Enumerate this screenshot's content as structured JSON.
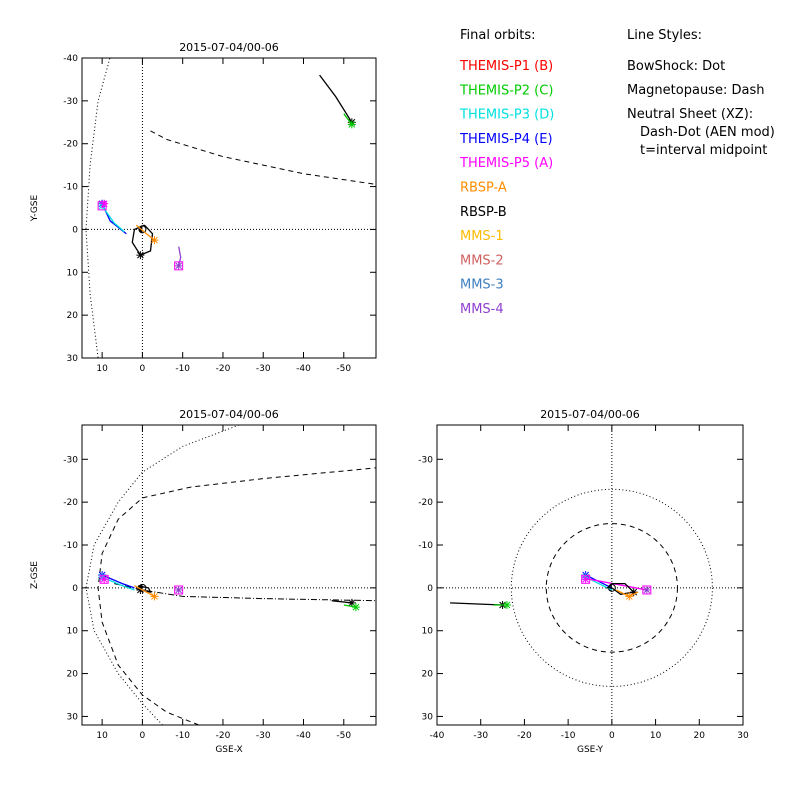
{
  "legend": {
    "orbits_title": "Final orbits:",
    "entries": [
      {
        "label": "THEMIS-P1 (B)",
        "color": "#ff0000"
      },
      {
        "label": "THEMIS-P2 (C)",
        "color": "#00cc00"
      },
      {
        "label": "THEMIS-P3 (D)",
        "color": "#00e0e0"
      },
      {
        "label": "THEMIS-P4 (E)",
        "color": "#0000ff"
      },
      {
        "label": "THEMIS-P5 (A)",
        "color": "#ff00ff"
      },
      {
        "label": "RBSP-A",
        "color": "#ff8c00"
      },
      {
        "label": "RBSP-B",
        "color": "#000000"
      },
      {
        "label": "MMS-1",
        "color": "#ffbb00"
      },
      {
        "label": "MMS-2",
        "color": "#d06060"
      },
      {
        "label": "MMS-3",
        "color": "#4080c0"
      },
      {
        "label": "MMS-4",
        "color": "#9040d0"
      }
    ],
    "styles_title": "Line Styles:",
    "styles": [
      "BowShock: Dot",
      "Magnetopause: Dash",
      "Neutral Sheet (XZ):",
      "Dash-Dot (AEN mod)",
      "t=interval midpoint"
    ]
  },
  "chart_data": [
    {
      "type": "line",
      "title": "2015-07-04/00-06",
      "xlabel": "",
      "ylabel": "Y-GSE",
      "xlim": [
        15,
        -58
      ],
      "ylim": [
        -40,
        30
      ],
      "xticks": [
        10,
        0,
        -10,
        -20,
        -30,
        -40,
        -50
      ],
      "yticks": [
        -40,
        -30,
        -20,
        -10,
        0,
        10,
        20,
        30
      ],
      "bow_shock": [
        [
          6,
          -47
        ],
        [
          11,
          -30
        ],
        [
          13,
          -15
        ],
        [
          14,
          0
        ],
        [
          13,
          15
        ],
        [
          11,
          30
        ],
        [
          6,
          47
        ]
      ],
      "magnetopause": [
        [
          -2,
          -23
        ],
        [
          -6,
          -21
        ],
        [
          -20,
          -17
        ],
        [
          -40,
          -13
        ],
        [
          -58,
          -10.5
        ]
      ],
      "series": [
        {
          "color": "#000000",
          "points": [
            [
              -44,
              -36
            ],
            [
              -48,
              -31
            ],
            [
              -52,
              -25
            ]
          ],
          "ends": [
            [
              -52,
              -25
            ]
          ]
        },
        {
          "color": "#00cc00",
          "points": [
            [
              -50,
              -27
            ],
            [
              -52,
              -24.5
            ]
          ],
          "ends": [
            [
              -52,
              -24.5
            ]
          ]
        },
        {
          "color": "#0000ff",
          "points": [
            [
              10,
              -6
            ],
            [
              8,
              -2
            ],
            [
              4,
              1
            ]
          ],
          "ends": [
            [
              10,
              -6
            ]
          ]
        },
        {
          "color": "#00e0e0",
          "points": [
            [
              10,
              -5.5
            ],
            [
              7,
              -1.5
            ],
            [
              4.5,
              0.5
            ]
          ],
          "ends": [
            [
              10,
              -5.5
            ]
          ]
        },
        {
          "color": "#ff00ff",
          "points": [
            [
              9.5,
              -6
            ],
            [
              10,
              -5
            ]
          ],
          "ends": [
            [
              9.5,
              -6
            ]
          ]
        },
        {
          "color": "#000000",
          "points": [
            [
              -0.5,
              -1
            ],
            [
              2,
              0
            ],
            [
              2.5,
              3
            ],
            [
              0.5,
              6
            ],
            [
              -2,
              5
            ],
            [
              -2.5,
              1
            ],
            [
              -0.5,
              -1
            ]
          ],
          "ends": [
            [
              0.5,
              6
            ]
          ]
        },
        {
          "color": "#ff8c00",
          "points": [
            [
              1.5,
              -1
            ],
            [
              -1,
              1
            ],
            [
              -3,
              2.5
            ]
          ],
          "ends": [
            [
              -3,
              2.5
            ]
          ]
        },
        {
          "color": "#9040d0",
          "points": [
            [
              -9,
              4
            ],
            [
              -9.5,
              6.5
            ],
            [
              -9,
              8.5
            ]
          ],
          "ends": [
            [
              -9,
              8.5
            ]
          ]
        }
      ],
      "boxes": [
        [
          10,
          -5.5
        ],
        [
          -9,
          8.5
        ]
      ]
    },
    {
      "type": "line",
      "title": "2015-07-04/00-06",
      "xlabel": "GSE-X",
      "ylabel": "Z-GSE",
      "xlim": [
        15,
        -58
      ],
      "ylim": [
        -38,
        32
      ],
      "xticks": [
        10,
        0,
        -10,
        -20,
        -30,
        -40,
        -50
      ],
      "yticks": [
        -30,
        -20,
        -10,
        0,
        10,
        20,
        30
      ],
      "bow_shock": [
        [
          -5,
          32
        ],
        [
          0,
          27
        ],
        [
          6,
          20
        ],
        [
          12,
          10
        ],
        [
          14,
          0
        ],
        [
          12,
          -10
        ],
        [
          6,
          -20
        ],
        [
          0,
          -27
        ],
        [
          -10,
          -33
        ],
        [
          -24,
          -38
        ]
      ],
      "magnetopause": [
        [
          -14,
          32
        ],
        [
          -6,
          29
        ],
        [
          0,
          25
        ],
        [
          6,
          18
        ],
        [
          10,
          8
        ],
        [
          11,
          0
        ],
        [
          10,
          -8
        ],
        [
          6,
          -16
        ],
        [
          0,
          -21
        ],
        [
          -12,
          -23.5
        ],
        [
          -30,
          -25.5
        ],
        [
          -58,
          -28
        ]
      ],
      "neutral_sheet": [
        [
          7,
          -1
        ],
        [
          0,
          0.5
        ],
        [
          -10,
          2
        ],
        [
          -30,
          2.5
        ],
        [
          -58,
          3
        ]
      ],
      "series": [
        {
          "color": "#000000",
          "points": [
            [
              -47,
              3
            ],
            [
              -52,
              3.5
            ]
          ],
          "ends": [
            [
              -52,
              3.5
            ]
          ]
        },
        {
          "color": "#00cc00",
          "points": [
            [
              -50,
              4
            ],
            [
              -53,
              4.5
            ]
          ],
          "ends": [
            [
              -53,
              4.5
            ]
          ]
        },
        {
          "color": "#0000ff",
          "points": [
            [
              10,
              -3
            ],
            [
              5,
              -1
            ],
            [
              2,
              0
            ]
          ],
          "ends": [
            [
              10,
              -3
            ]
          ]
        },
        {
          "color": "#00e0e0",
          "points": [
            [
              10,
              -2.5
            ],
            [
              5,
              -0.5
            ],
            [
              2,
              0.5
            ]
          ],
          "ends": [
            [
              10,
              -2.5
            ]
          ]
        },
        {
          "color": "#ff00ff",
          "points": [
            [
              9.5,
              -2
            ],
            [
              10,
              -2.5
            ]
          ],
          "ends": [
            [
              9.5,
              -2
            ]
          ]
        },
        {
          "color": "#000000",
          "points": [
            [
              1,
              -0.5
            ],
            [
              -1.5,
              0
            ],
            [
              -2,
              1
            ],
            [
              0.5,
              0.5
            ],
            [
              1,
              -0.5
            ]
          ],
          "ends": [
            [
              0.5,
              0.5
            ]
          ]
        },
        {
          "color": "#ff8c00",
          "points": [
            [
              2,
              -0.5
            ],
            [
              -1,
              1
            ],
            [
              -3,
              2
            ]
          ],
          "ends": [
            [
              -3,
              2
            ]
          ]
        },
        {
          "color": "#9040d0",
          "points": [
            [
              -9,
              0.5
            ]
          ],
          "ends": [
            [
              -9,
              0.5
            ]
          ]
        }
      ],
      "boxes": [
        [
          9.5,
          -2
        ],
        [
          -9,
          0.5
        ]
      ]
    },
    {
      "type": "line",
      "title": "2015-07-04/00-06",
      "xlabel": "GSE-Y",
      "ylabel": "",
      "xlim": [
        -40,
        30
      ],
      "ylim": [
        -38,
        32
      ],
      "xticks": [
        -40,
        -30,
        -20,
        -10,
        0,
        10,
        20,
        30
      ],
      "yticks": [
        -30,
        -20,
        -10,
        0,
        10,
        20,
        30
      ],
      "bow_shock_radius": 23,
      "magnetopause_radius": 15,
      "series": [
        {
          "color": "#000000",
          "points": [
            [
              -37,
              3.5
            ],
            [
              -30,
              3.8
            ],
            [
              -25,
              4
            ]
          ],
          "ends": [
            [
              -25,
              4
            ]
          ]
        },
        {
          "color": "#00cc00",
          "points": [
            [
              -27,
              4
            ],
            [
              -24,
              4
            ]
          ],
          "ends": [
            [
              -24,
              4
            ]
          ]
        },
        {
          "color": "#0000ff",
          "points": [
            [
              -6,
              -3
            ],
            [
              -3,
              -1.5
            ],
            [
              0,
              0
            ]
          ],
          "ends": [
            [
              -6,
              -3
            ]
          ]
        },
        {
          "color": "#00e0e0",
          "points": [
            [
              -6,
              -2.5
            ],
            [
              -3,
              -1
            ],
            [
              0,
              0.5
            ]
          ],
          "ends": [
            [
              -6,
              -2.5
            ]
          ]
        },
        {
          "color": "#ff00ff",
          "points": [
            [
              -6,
              -2
            ],
            [
              -5,
              -2
            ],
            [
              8,
              0.5
            ]
          ],
          "ends": [
            [
              -6,
              -2
            ]
          ]
        },
        {
          "color": "#000000",
          "points": [
            [
              0,
              0
            ],
            [
              2,
              1.5
            ],
            [
              5,
              1
            ],
            [
              3,
              -1
            ],
            [
              0,
              -1
            ],
            [
              -1,
              0
            ],
            [
              0,
              0
            ]
          ],
          "ends": [
            [
              5,
              1
            ]
          ]
        },
        {
          "color": "#ff8c00",
          "points": [
            [
              1,
              0.5
            ],
            [
              4,
              2
            ],
            [
              6,
              1
            ]
          ],
          "ends": [
            [
              4,
              2
            ]
          ]
        },
        {
          "color": "#9040d0",
          "points": [
            [
              8,
              0.5
            ]
          ],
          "ends": [
            [
              8,
              0.5
            ]
          ]
        }
      ],
      "boxes": [
        [
          -6,
          -2
        ],
        [
          8,
          0.5
        ]
      ]
    }
  ]
}
